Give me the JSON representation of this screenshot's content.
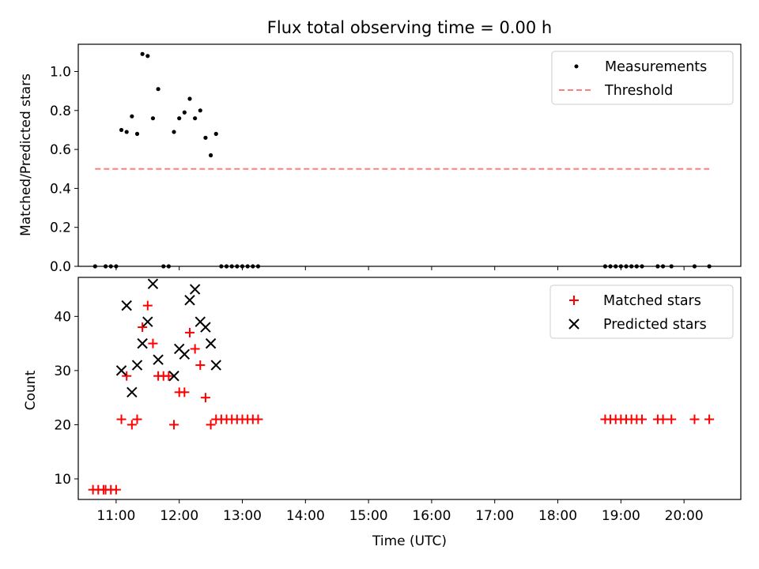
{
  "chart_data": [
    {
      "type": "scatter",
      "title": "Flux total observing time = 0.00 h",
      "xlabel": "",
      "ylabel": "Matched/Predicted stars",
      "xlim": [
        "10:24",
        "20:54"
      ],
      "ylim": [
        0,
        1.14
      ],
      "yticks": [
        "0.0",
        "0.2",
        "0.4",
        "0.6",
        "0.8",
        "1.0"
      ],
      "ytick_values": [
        0.0,
        0.2,
        0.4,
        0.6,
        0.8,
        1.0
      ],
      "legend": "top-right",
      "series": [
        {
          "name": "Measurements",
          "kind": "dots",
          "color": "#000000",
          "points": [
            [
              "10:40",
              0.0
            ],
            [
              "10:50",
              0.0
            ],
            [
              "10:55",
              0.0
            ],
            [
              "11:00",
              0.0
            ],
            [
              "11:05",
              0.7
            ],
            [
              "11:10",
              0.69
            ],
            [
              "11:15",
              0.77
            ],
            [
              "11:20",
              0.68
            ],
            [
              "11:25",
              1.09
            ],
            [
              "11:30",
              1.08
            ],
            [
              "11:35",
              0.76
            ],
            [
              "11:40",
              0.91
            ],
            [
              "11:45",
              0.0
            ],
            [
              "11:50",
              0.0
            ],
            [
              "11:55",
              0.69
            ],
            [
              "12:00",
              0.76
            ],
            [
              "12:05",
              0.79
            ],
            [
              "12:10",
              0.86
            ],
            [
              "12:15",
              0.76
            ],
            [
              "12:20",
              0.8
            ],
            [
              "12:25",
              0.66
            ],
            [
              "12:30",
              0.57
            ],
            [
              "12:35",
              0.68
            ],
            [
              "12:40",
              0.0
            ],
            [
              "12:45",
              0.0
            ],
            [
              "12:50",
              0.0
            ],
            [
              "12:55",
              0.0
            ],
            [
              "13:00",
              0.0
            ],
            [
              "13:05",
              0.0
            ],
            [
              "13:10",
              0.0
            ],
            [
              "13:15",
              0.0
            ],
            [
              "18:45",
              0.0
            ],
            [
              "18:50",
              0.0
            ],
            [
              "18:55",
              0.0
            ],
            [
              "19:00",
              0.0
            ],
            [
              "19:05",
              0.0
            ],
            [
              "19:10",
              0.0
            ],
            [
              "19:15",
              0.0
            ],
            [
              "19:20",
              0.0
            ],
            [
              "19:35",
              0.0
            ],
            [
              "19:40",
              0.0
            ],
            [
              "19:48",
              0.0
            ],
            [
              "20:10",
              0.0
            ],
            [
              "20:24",
              0.0
            ]
          ]
        },
        {
          "name": "Threshold",
          "kind": "dashed-line",
          "color": "#ff7f7f",
          "points": [
            [
              "10:40",
              0.5
            ],
            [
              "20:24",
              0.5
            ]
          ]
        }
      ]
    },
    {
      "type": "scatter",
      "title": "",
      "xlabel": "Time (UTC)",
      "ylabel": "Count",
      "xlim": [
        "10:24",
        "20:54"
      ],
      "ylim": [
        6.2,
        47.2
      ],
      "yticks": [
        "10",
        "20",
        "30",
        "40"
      ],
      "ytick_values": [
        10,
        20,
        30,
        40
      ],
      "xticks": [
        "11:00",
        "12:00",
        "13:00",
        "14:00",
        "15:00",
        "16:00",
        "17:00",
        "18:00",
        "19:00",
        "20:00"
      ],
      "legend": "top-right",
      "series": [
        {
          "name": "Matched stars",
          "kind": "plus",
          "color": "#ff0000",
          "points": [
            [
              "10:38",
              8
            ],
            [
              "10:43",
              8
            ],
            [
              "10:48",
              8
            ],
            [
              "10:50",
              8
            ],
            [
              "10:55",
              8
            ],
            [
              "11:00",
              8
            ],
            [
              "11:05",
              21
            ],
            [
              "11:10",
              29
            ],
            [
              "11:15",
              20
            ],
            [
              "11:20",
              21
            ],
            [
              "11:25",
              38
            ],
            [
              "11:30",
              42
            ],
            [
              "11:35",
              35
            ],
            [
              "11:40",
              29
            ],
            [
              "11:45",
              29
            ],
            [
              "11:50",
              29
            ],
            [
              "11:55",
              20
            ],
            [
              "12:00",
              26
            ],
            [
              "12:05",
              26
            ],
            [
              "12:10",
              37
            ],
            [
              "12:15",
              34
            ],
            [
              "12:20",
              31
            ],
            [
              "12:25",
              25
            ],
            [
              "12:30",
              20
            ],
            [
              "12:35",
              21
            ],
            [
              "12:40",
              21
            ],
            [
              "12:45",
              21
            ],
            [
              "12:50",
              21
            ],
            [
              "12:55",
              21
            ],
            [
              "13:00",
              21
            ],
            [
              "13:05",
              21
            ],
            [
              "13:10",
              21
            ],
            [
              "13:15",
              21
            ],
            [
              "18:45",
              21
            ],
            [
              "18:50",
              21
            ],
            [
              "18:55",
              21
            ],
            [
              "19:00",
              21
            ],
            [
              "19:05",
              21
            ],
            [
              "19:10",
              21
            ],
            [
              "19:15",
              21
            ],
            [
              "19:20",
              21
            ],
            [
              "19:35",
              21
            ],
            [
              "19:40",
              21
            ],
            [
              "19:48",
              21
            ],
            [
              "20:10",
              21
            ],
            [
              "20:24",
              21
            ]
          ]
        },
        {
          "name": "Predicted stars",
          "kind": "cross",
          "color": "#000000",
          "points": [
            [
              "11:05",
              30
            ],
            [
              "11:10",
              42
            ],
            [
              "11:15",
              26
            ],
            [
              "11:20",
              31
            ],
            [
              "11:25",
              35
            ],
            [
              "11:30",
              39
            ],
            [
              "11:35",
              46
            ],
            [
              "11:40",
              32
            ],
            [
              "11:55",
              29
            ],
            [
              "12:00",
              34
            ],
            [
              "12:05",
              33
            ],
            [
              "12:10",
              43
            ],
            [
              "12:15",
              45
            ],
            [
              "12:20",
              39
            ],
            [
              "12:25",
              38
            ],
            [
              "12:30",
              35
            ],
            [
              "12:35",
              31
            ]
          ]
        }
      ]
    }
  ]
}
